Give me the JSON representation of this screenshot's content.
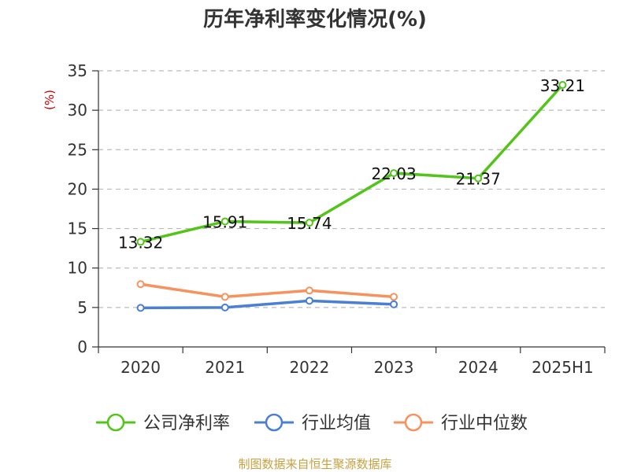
{
  "chart_data": {
    "type": "line",
    "title": "历年净利率变化情况(%)",
    "y_unit": "(%)",
    "categories": [
      "2020",
      "2021",
      "2022",
      "2023",
      "2024",
      "2025H1"
    ],
    "ylim": [
      0,
      35
    ],
    "yticks": [
      0,
      5,
      10,
      15,
      20,
      25,
      30,
      35
    ],
    "grid": true,
    "legend_position": "bottom",
    "series": [
      {
        "name": "公司净利率",
        "color": "#52c41a",
        "values": [
          13.32,
          15.91,
          15.74,
          22.03,
          21.37,
          33.21
        ],
        "labels": true
      },
      {
        "name": "行业均值",
        "color": "#4a7fd4",
        "values": [
          4.95,
          5.0,
          5.85,
          5.4,
          null,
          null
        ],
        "labels": false
      },
      {
        "name": "行业中位数",
        "color": "#f5925e",
        "values": [
          7.95,
          6.35,
          7.15,
          6.35,
          null,
          null
        ],
        "labels": false
      }
    ],
    "source": "制图数据来自恒生聚源数据库"
  }
}
